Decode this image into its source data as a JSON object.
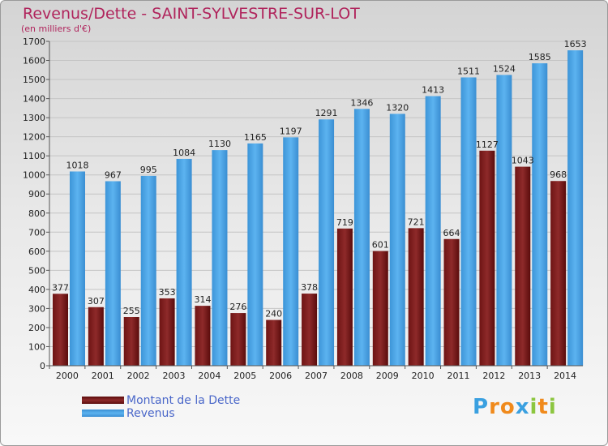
{
  "chart_data": {
    "type": "bar",
    "title": "Revenus/Dette - SAINT-SYLVESTRE-SUR-LOT",
    "subtitle": "(en milliers d'€)",
    "categories": [
      "2000",
      "2001",
      "2002",
      "2003",
      "2004",
      "2005",
      "2006",
      "2007",
      "2008",
      "2009",
      "2010",
      "2011",
      "2012",
      "2013",
      "2014"
    ],
    "series": [
      {
        "name": "Montant de la Dette",
        "color": "#7a1c1c",
        "values": [
          377,
          307,
          255,
          353,
          314,
          276,
          240,
          378,
          719,
          601,
          721,
          664,
          1127,
          1043,
          968
        ]
      },
      {
        "name": "Revenus",
        "color": "#4da6e8",
        "values": [
          1018,
          967,
          995,
          1084,
          1130,
          1165,
          1197,
          1291,
          1346,
          1320,
          1413,
          1511,
          1524,
          1585,
          1653
        ]
      }
    ],
    "data_labels": [
      [
        "377",
        "307",
        "255",
        "353",
        "314",
        "276",
        "240",
        "378",
        "719",
        "601",
        "721",
        "664",
        "1127",
        "1043",
        "968"
      ],
      [
        "1018",
        "967",
        "995",
        "1084",
        "1130",
        "1165",
        "1197",
        "1291",
        "1346",
        "1320",
        "1413",
        "1511",
        "1524",
        "1585",
        "1653"
      ]
    ],
    "ylim": [
      0,
      1700
    ],
    "yticks": [
      0,
      100,
      200,
      300,
      400,
      500,
      600,
      700,
      800,
      900,
      1000,
      1100,
      1200,
      1300,
      1400,
      1500,
      1600,
      1700
    ],
    "grid": true,
    "legend_position": "bottom-left"
  },
  "logo": {
    "letters": [
      "P",
      "r",
      "o",
      "x",
      "i",
      "t",
      "i"
    ],
    "colors": [
      "#3aa0e0",
      "#f08a1c",
      "#f08a1c",
      "#3aa0e0",
      "#8cc63f",
      "#f08a1c",
      "#8cc63f"
    ]
  }
}
